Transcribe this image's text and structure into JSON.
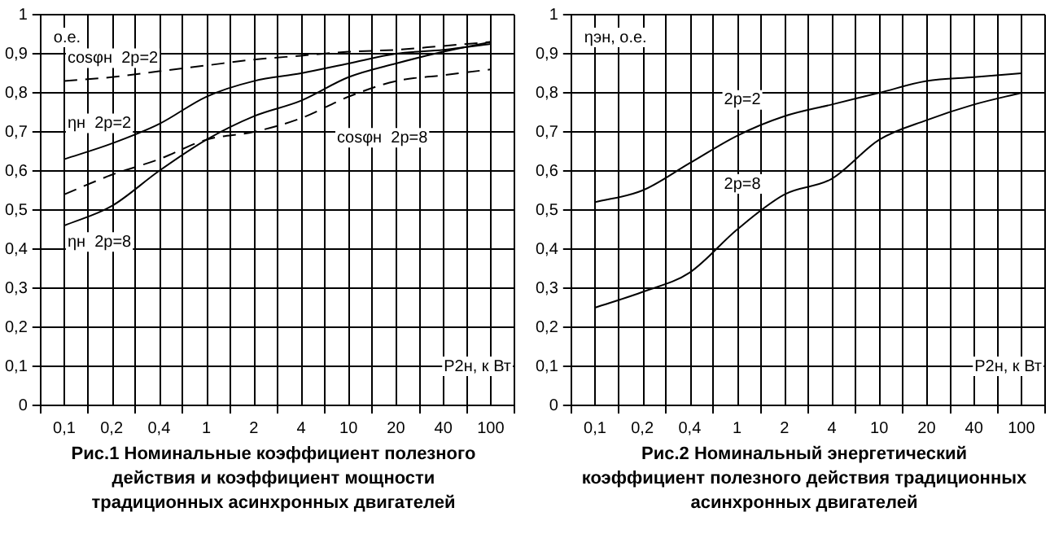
{
  "chart_data": [
    {
      "type": "line",
      "title": "Рис.1 Номинальные коэффициент полезного действия и коэффициент мощности традиционных асинхронных двигателей",
      "xlabel": "P2н, к Вт",
      "ylabel": "о.е.",
      "categories": [
        "0,1",
        "0,2",
        "0,4",
        "1",
        "2",
        "4",
        "10",
        "20",
        "40",
        "100"
      ],
      "series": [
        {
          "name": "cosφн  2p=2",
          "color": "#000000",
          "line_style": "dashed",
          "values": [
            0.83,
            0.84,
            0.855,
            0.87,
            0.885,
            0.895,
            0.905,
            0.91,
            0.92,
            0.93
          ]
        },
        {
          "name": "ηн  2p=2",
          "color": "#000000",
          "line_style": "solid",
          "values": [
            0.63,
            0.67,
            0.72,
            0.79,
            0.83,
            0.85,
            0.875,
            0.9,
            0.91,
            0.925
          ]
        },
        {
          "name": "cosφн  2p=8",
          "color": "#000000",
          "line_style": "dashed",
          "values": [
            0.54,
            0.59,
            0.63,
            0.68,
            0.7,
            0.735,
            0.79,
            0.83,
            0.845,
            0.86
          ]
        },
        {
          "name": "ηн  2p=8",
          "color": "#000000",
          "line_style": "solid",
          "values": [
            0.46,
            0.51,
            0.6,
            0.68,
            0.74,
            0.78,
            0.84,
            0.875,
            0.905,
            0.93
          ]
        }
      ],
      "ylim": [
        0,
        1
      ],
      "yticks": [
        {
          "value": 0,
          "label": "0"
        },
        {
          "value": 0.1,
          "label": "0,1"
        },
        {
          "value": 0.2,
          "label": "0,2"
        },
        {
          "value": 0.3,
          "label": "0,3"
        },
        {
          "value": 0.4,
          "label": "0,4"
        },
        {
          "value": 0.5,
          "label": "0,5"
        },
        {
          "value": 0.6,
          "label": "0,6"
        },
        {
          "value": 0.7,
          "label": "0,7"
        },
        {
          "value": 0.8,
          "label": "0,8"
        },
        {
          "value": 0.9,
          "label": "0,9"
        },
        {
          "value": 1,
          "label": "1"
        }
      ],
      "grid": true,
      "legend": false,
      "marker": "none"
    },
    {
      "type": "line",
      "title": "Рис.2 Номинальный энергетический коэффициент полезного действия традиционных асинхронных двигателей",
      "xlabel": "P2н, к Вт",
      "ylabel": "ηэн, о.е.",
      "categories": [
        "0,1",
        "0,2",
        "0,4",
        "1",
        "2",
        "4",
        "10",
        "20",
        "40",
        "100"
      ],
      "series": [
        {
          "name": "2p=2",
          "color": "#000000",
          "line_style": "solid",
          "values": [
            0.52,
            0.55,
            0.62,
            0.69,
            0.74,
            0.77,
            0.8,
            0.83,
            0.84,
            0.85
          ]
        },
        {
          "name": "2p=8",
          "color": "#000000",
          "line_style": "solid",
          "values": [
            0.25,
            0.29,
            0.34,
            0.45,
            0.54,
            0.58,
            0.68,
            0.73,
            0.77,
            0.8
          ]
        }
      ],
      "ylim": [
        0,
        1
      ],
      "yticks": [
        {
          "value": 0,
          "label": "0"
        },
        {
          "value": 0.1,
          "label": "0,1"
        },
        {
          "value": 0.2,
          "label": "0,2"
        },
        {
          "value": 0.3,
          "label": "0,3"
        },
        {
          "value": 0.4,
          "label": "0,4"
        },
        {
          "value": 0.5,
          "label": "0,5"
        },
        {
          "value": 0.6,
          "label": "0,6"
        },
        {
          "value": 0.7,
          "label": "0,7"
        },
        {
          "value": 0.8,
          "label": "0,8"
        },
        {
          "value": 0.9,
          "label": "0,9"
        },
        {
          "value": 1,
          "label": "1"
        }
      ],
      "grid": true,
      "legend": false,
      "marker": "none"
    }
  ]
}
